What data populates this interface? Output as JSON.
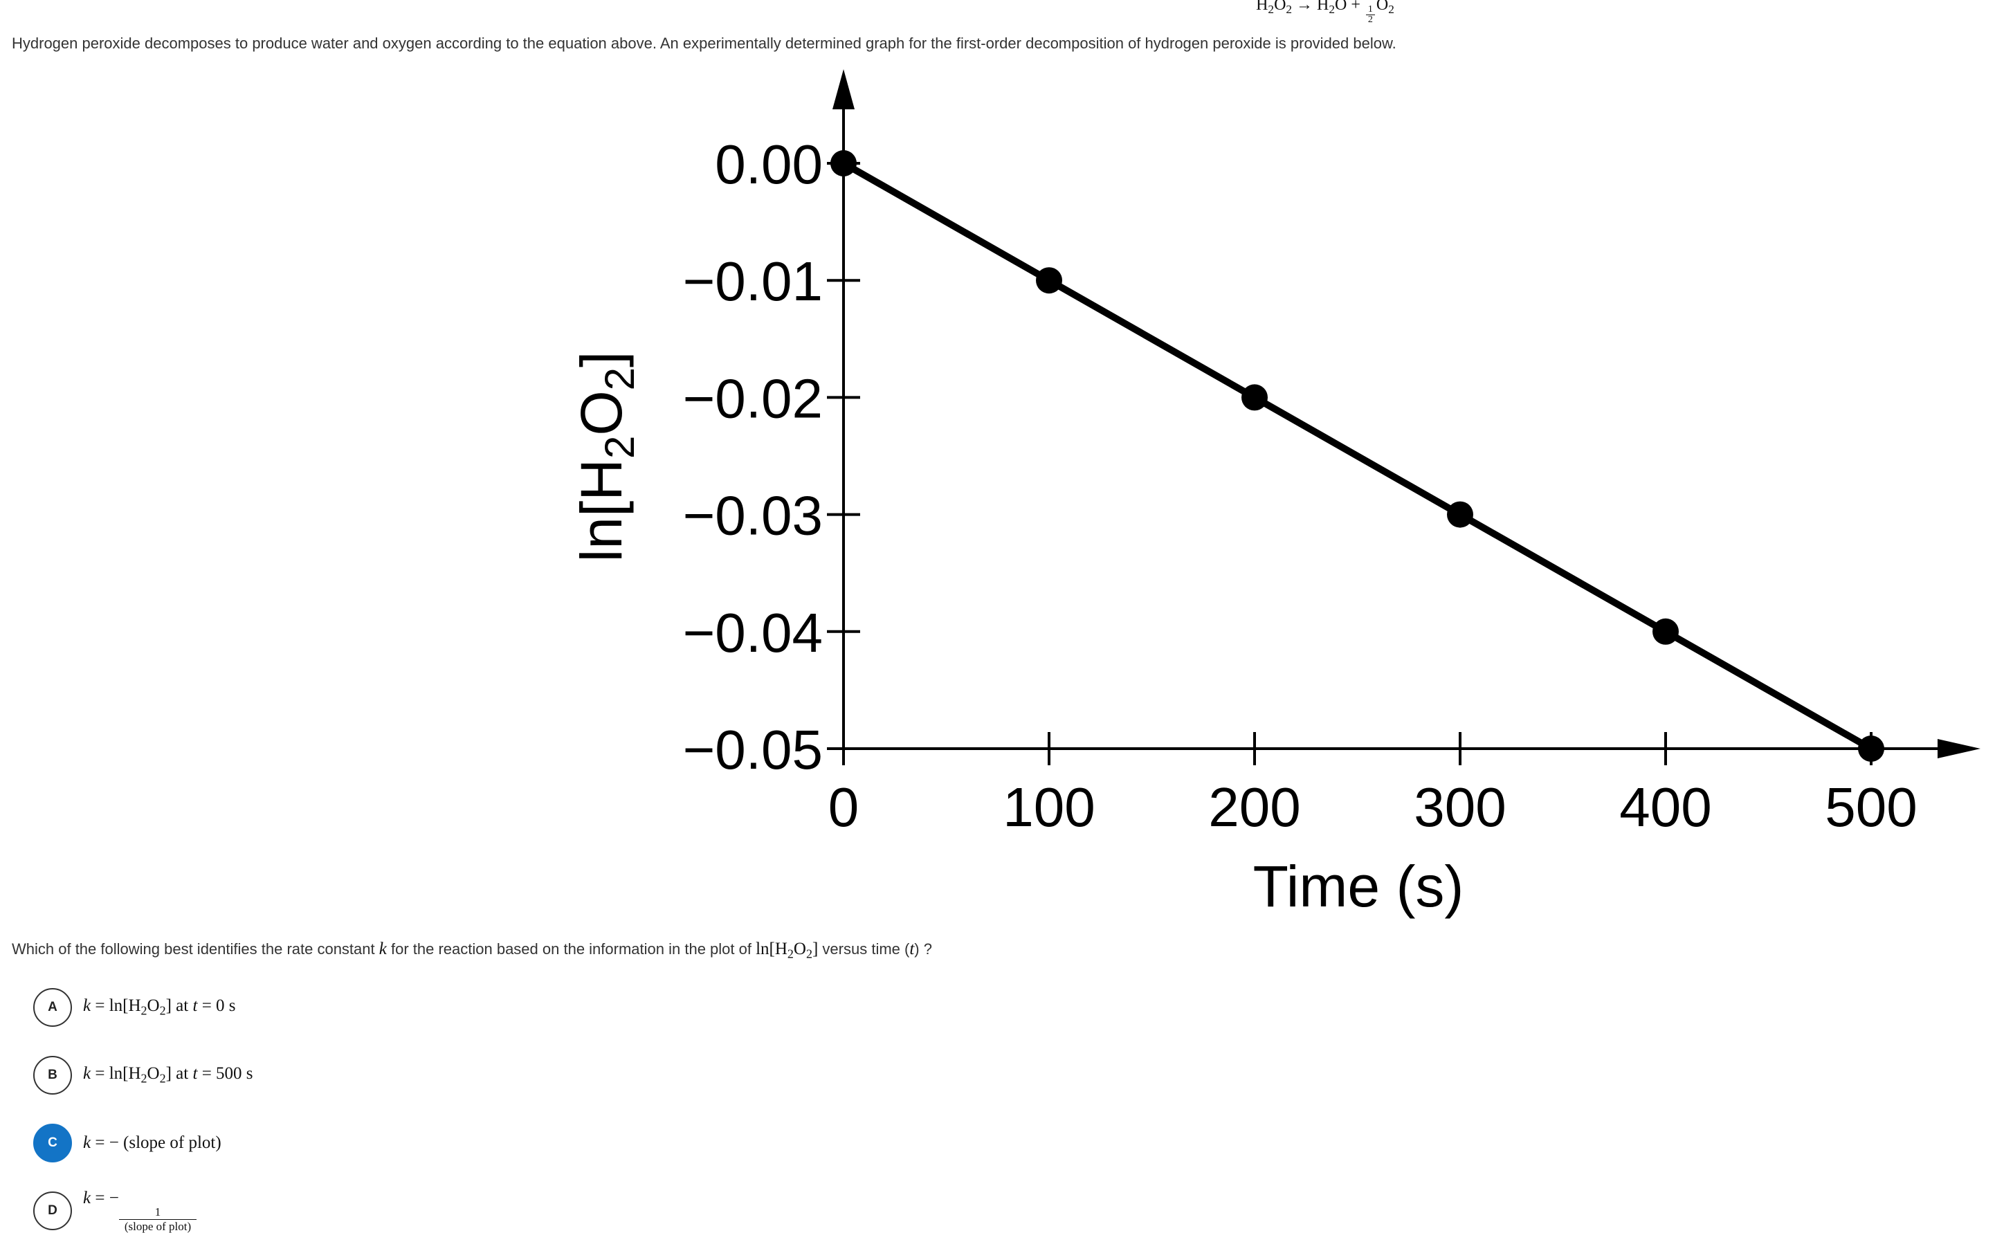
{
  "equation": {
    "reactant": "H",
    "reactant_sub1": "2",
    "reactant_o": "O",
    "reactant_sub2": "2",
    "arrow": "→",
    "product1": "H",
    "product1_sub": "2",
    "product1_o": "O",
    "plus": "+",
    "frac_num": "1",
    "frac_den": "2",
    "product2": "O",
    "product2_sub": "2"
  },
  "intro_text": "Hydrogen peroxide decomposes to produce water and oxygen according to the equation above. An experimentally determined graph for the first-order decomposition of hydrogen peroxide is provided below.",
  "chart_data": {
    "type": "line",
    "title": "",
    "xlabel": "Time (s)",
    "ylabel": "ln[H2O2]",
    "ylabel_parts": {
      "pre": "ln[H",
      "sub": "2",
      "mid": "O",
      "sub2": "2",
      "post": "]"
    },
    "x": [
      0,
      100,
      200,
      300,
      400,
      500
    ],
    "y": [
      0.0,
      -0.01,
      -0.02,
      -0.03,
      -0.04,
      -0.05
    ],
    "xlim": [
      0,
      500
    ],
    "ylim": [
      -0.05,
      0.0
    ],
    "xticks": [
      0,
      100,
      200,
      300,
      400,
      500
    ],
    "xtick_labels": [
      "0",
      "100",
      "200",
      "300",
      "400",
      "500"
    ],
    "yticks": [
      0.0,
      -0.01,
      -0.02,
      -0.03,
      -0.04,
      -0.05
    ],
    "ytick_labels": [
      "0.00",
      "−0.01",
      "−0.02",
      "−0.03",
      "−0.04",
      "−0.05"
    ],
    "grid": false,
    "markers": true
  },
  "question": {
    "text_before": "Which of the following best identifies the rate constant ",
    "k": "k",
    "text_mid": " for the reaction based on the information in the plot of ",
    "ln_part": "ln[H",
    "sub1": "2",
    "o_part": "O",
    "sub2": "2",
    "close": "]",
    "text_versus": " versus time (",
    "t": "t",
    "text_after": ") ?"
  },
  "options": [
    {
      "letter": "A",
      "k": "k",
      "eq": " = ln[H",
      "sub1": "2",
      "o": "O",
      "sub2": "2",
      "close": "] at ",
      "t": "t",
      "rest": " = 0 s",
      "selected": false
    },
    {
      "letter": "B",
      "k": "k",
      "eq": " = ln[H",
      "sub1": "2",
      "o": "O",
      "sub2": "2",
      "close": "] at ",
      "t": "t",
      "rest": " = 500 s",
      "selected": false
    },
    {
      "letter": "C",
      "k": "k",
      "text": " = − (slope of plot)",
      "selected": true
    },
    {
      "letter": "D",
      "k": "k",
      "eq": " = −",
      "num": "1",
      "den": "(slope of plot)",
      "selected": false
    }
  ],
  "colors": {
    "selected_accent": "#1374c6",
    "text": "#333333",
    "plot": "#000000"
  }
}
